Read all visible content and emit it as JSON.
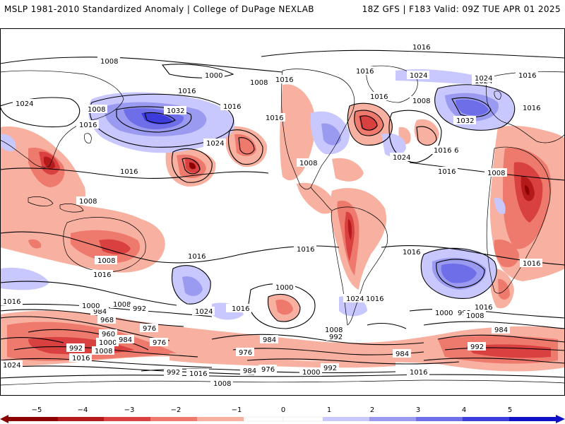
{
  "header": {
    "left": "MSLP 1981-2010 Standardized Anomaly | College of DuPage NEXLAB",
    "right": "18Z GFS | F183 Valid: 09Z TUE APR 01 2025"
  },
  "colors": {
    "neg5": "#8b0000",
    "neg4": "#b51a1a",
    "neg3": "#d94040",
    "neg2": "#ee7a6e",
    "neg1": "#f8b0a0",
    "pos1": "#c8c8ff",
    "pos2": "#9a9af0",
    "pos3": "#6e6ee8",
    "pos4": "#3c3cdc",
    "pos5": "#1010c8",
    "contour": "#000000",
    "coast": "#000000",
    "ocean": "#ffffff"
  },
  "colorbar": {
    "ticks": [
      "−5",
      "−4",
      "−3",
      "−2",
      "−1",
      "0",
      "1",
      "2",
      "3",
      "4",
      "5"
    ]
  },
  "isobar_labels": [
    "1016",
    "1008",
    "1000",
    "1024",
    "1008",
    "1016",
    "1024",
    "1024",
    "1032",
    "1016",
    "1016",
    "1016",
    "1024",
    "1016",
    "1008",
    "1016",
    "1016",
    "1016",
    "1024",
    "1032",
    "1024",
    "1016",
    "1008",
    "1016",
    "1008",
    "1008",
    "1008",
    "1016",
    "1008",
    "1016",
    "1016",
    "1016",
    "1016",
    "1016",
    "1016",
    "1000",
    "1008",
    "992",
    "984",
    "968",
    "960",
    "1000",
    "992",
    "984",
    "976",
    "976",
    "1016",
    "1024",
    "1016",
    "1008",
    "1000",
    "1024",
    "1016",
    "1000",
    "992",
    "1016",
    "1008",
    "992",
    "984",
    "976",
    "984",
    "984",
    "992",
    "1016",
    "1024",
    "1008",
    "1016",
    "992",
    "1016",
    "1008",
    "984",
    "976",
    "1000",
    "992",
    "1016",
    "1016"
  ]
}
